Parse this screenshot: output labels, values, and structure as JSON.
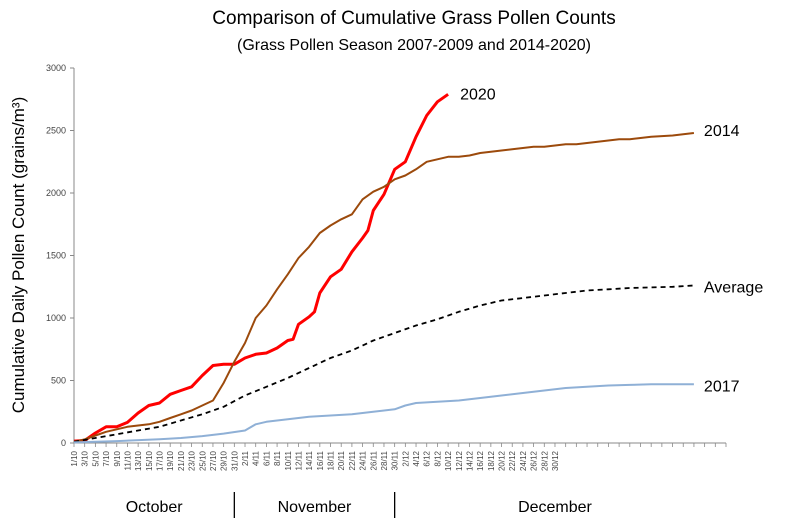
{
  "chart_data": {
    "type": "line",
    "title": "Comparison of Cumulative Grass Pollen Counts",
    "subtitle": "(Grass Pollen Season 2007-2009  and 2014-2020)",
    "xlabel": "",
    "ylabel": "Cumulative Daily Pollen Count (grains/m³)",
    "ylim": [
      0,
      3000
    ],
    "yticks": [
      "0",
      "500",
      "1000",
      "1500",
      "2000",
      "2500",
      "3000"
    ],
    "grid": false,
    "xticks": [
      "1/10",
      "3/10",
      "5/10",
      "7/10",
      "9/10",
      "11/10",
      "13/10",
      "15/10",
      "17/10",
      "19/10",
      "21/10",
      "23/10",
      "25/10",
      "27/10",
      "29/10",
      "31/10",
      "2/11",
      "4/11",
      "6/11",
      "8/11",
      "10/11",
      "12/11",
      "14/11",
      "16/11",
      "18/11",
      "20/11",
      "22/11",
      "24/11",
      "26/11",
      "28/11",
      "30/11",
      "2/12",
      "4/12",
      "6/12",
      "8/12",
      "10/12",
      "12/12",
      "14/12",
      "16/12",
      "18/12",
      "20/12",
      "22/12",
      "24/12",
      "26/12",
      "28/12",
      "30/12"
    ],
    "months": [
      "October",
      "November",
      "December"
    ],
    "series": [
      {
        "name": "2020",
        "color": "#ff0000",
        "dashed": false,
        "width": 3,
        "points": [
          [
            0,
            15
          ],
          [
            2,
            20
          ],
          [
            4,
            80
          ],
          [
            6,
            130
          ],
          [
            8,
            130
          ],
          [
            10,
            165
          ],
          [
            12,
            240
          ],
          [
            14,
            300
          ],
          [
            16,
            320
          ],
          [
            18,
            390
          ],
          [
            20,
            420
          ],
          [
            22,
            450
          ],
          [
            24,
            540
          ],
          [
            26,
            620
          ],
          [
            28,
            630
          ],
          [
            30,
            630
          ],
          [
            32,
            680
          ],
          [
            34,
            710
          ],
          [
            36,
            720
          ],
          [
            38,
            760
          ],
          [
            40,
            820
          ],
          [
            41,
            830
          ],
          [
            42,
            950
          ],
          [
            44,
            1010
          ],
          [
            45,
            1050
          ],
          [
            46,
            1200
          ],
          [
            48,
            1330
          ],
          [
            50,
            1390
          ],
          [
            52,
            1530
          ],
          [
            54,
            1640
          ],
          [
            55,
            1700
          ],
          [
            56,
            1860
          ],
          [
            58,
            1990
          ],
          [
            60,
            2190
          ],
          [
            62,
            2250
          ],
          [
            64,
            2450
          ],
          [
            66,
            2620
          ],
          [
            68,
            2730
          ],
          [
            70,
            2790
          ]
        ]
      },
      {
        "name": "2014",
        "color": "#9c4a0c",
        "dashed": false,
        "width": 2,
        "points": [
          [
            0,
            10
          ],
          [
            2,
            30
          ],
          [
            4,
            60
          ],
          [
            6,
            90
          ],
          [
            8,
            110
          ],
          [
            10,
            130
          ],
          [
            12,
            140
          ],
          [
            14,
            150
          ],
          [
            16,
            170
          ],
          [
            18,
            200
          ],
          [
            20,
            230
          ],
          [
            22,
            260
          ],
          [
            24,
            300
          ],
          [
            26,
            340
          ],
          [
            28,
            480
          ],
          [
            30,
            650
          ],
          [
            32,
            800
          ],
          [
            34,
            1000
          ],
          [
            36,
            1100
          ],
          [
            38,
            1230
          ],
          [
            40,
            1350
          ],
          [
            42,
            1480
          ],
          [
            44,
            1570
          ],
          [
            46,
            1680
          ],
          [
            48,
            1740
          ],
          [
            50,
            1790
          ],
          [
            52,
            1830
          ],
          [
            54,
            1950
          ],
          [
            56,
            2010
          ],
          [
            58,
            2050
          ],
          [
            60,
            2110
          ],
          [
            62,
            2140
          ],
          [
            64,
            2190
          ],
          [
            66,
            2250
          ],
          [
            68,
            2270
          ],
          [
            70,
            2290
          ],
          [
            72,
            2290
          ],
          [
            74,
            2300
          ],
          [
            76,
            2320
          ],
          [
            78,
            2330
          ],
          [
            80,
            2340
          ],
          [
            82,
            2350
          ],
          [
            84,
            2360
          ],
          [
            86,
            2370
          ],
          [
            88,
            2370
          ],
          [
            90,
            2380
          ],
          [
            92,
            2390
          ],
          [
            94,
            2390
          ],
          [
            96,
            2400
          ],
          [
            98,
            2410
          ],
          [
            100,
            2420
          ],
          [
            102,
            2430
          ],
          [
            104,
            2430
          ],
          [
            106,
            2440
          ],
          [
            108,
            2450
          ],
          [
            110,
            2455
          ],
          [
            112,
            2460
          ],
          [
            114,
            2470
          ],
          [
            116,
            2480
          ]
        ]
      },
      {
        "name": "Average",
        "color": "#000000",
        "dashed": true,
        "width": 1.8,
        "points": [
          [
            0,
            10
          ],
          [
            4,
            40
          ],
          [
            8,
            70
          ],
          [
            12,
            100
          ],
          [
            16,
            130
          ],
          [
            20,
            180
          ],
          [
            24,
            230
          ],
          [
            28,
            290
          ],
          [
            32,
            380
          ],
          [
            36,
            450
          ],
          [
            40,
            520
          ],
          [
            44,
            600
          ],
          [
            48,
            680
          ],
          [
            52,
            740
          ],
          [
            56,
            820
          ],
          [
            60,
            880
          ],
          [
            64,
            940
          ],
          [
            68,
            990
          ],
          [
            72,
            1050
          ],
          [
            76,
            1100
          ],
          [
            80,
            1140
          ],
          [
            84,
            1160
          ],
          [
            88,
            1180
          ],
          [
            92,
            1200
          ],
          [
            96,
            1220
          ],
          [
            100,
            1230
          ],
          [
            104,
            1240
          ],
          [
            108,
            1245
          ],
          [
            112,
            1250
          ],
          [
            116,
            1260
          ]
        ]
      },
      {
        "name": "2017",
        "color": "#8fb0d6",
        "dashed": false,
        "width": 2,
        "points": [
          [
            0,
            5
          ],
          [
            8,
            15
          ],
          [
            16,
            30
          ],
          [
            20,
            40
          ],
          [
            24,
            55
          ],
          [
            28,
            75
          ],
          [
            32,
            100
          ],
          [
            34,
            150
          ],
          [
            36,
            170
          ],
          [
            40,
            190
          ],
          [
            44,
            210
          ],
          [
            48,
            220
          ],
          [
            52,
            230
          ],
          [
            56,
            250
          ],
          [
            60,
            270
          ],
          [
            62,
            300
          ],
          [
            64,
            320
          ],
          [
            68,
            330
          ],
          [
            72,
            340
          ],
          [
            76,
            360
          ],
          [
            80,
            380
          ],
          [
            84,
            400
          ],
          [
            88,
            420
          ],
          [
            92,
            440
          ],
          [
            96,
            450
          ],
          [
            100,
            460
          ],
          [
            104,
            465
          ],
          [
            108,
            470
          ],
          [
            112,
            470
          ],
          [
            116,
            470
          ]
        ]
      }
    ]
  }
}
